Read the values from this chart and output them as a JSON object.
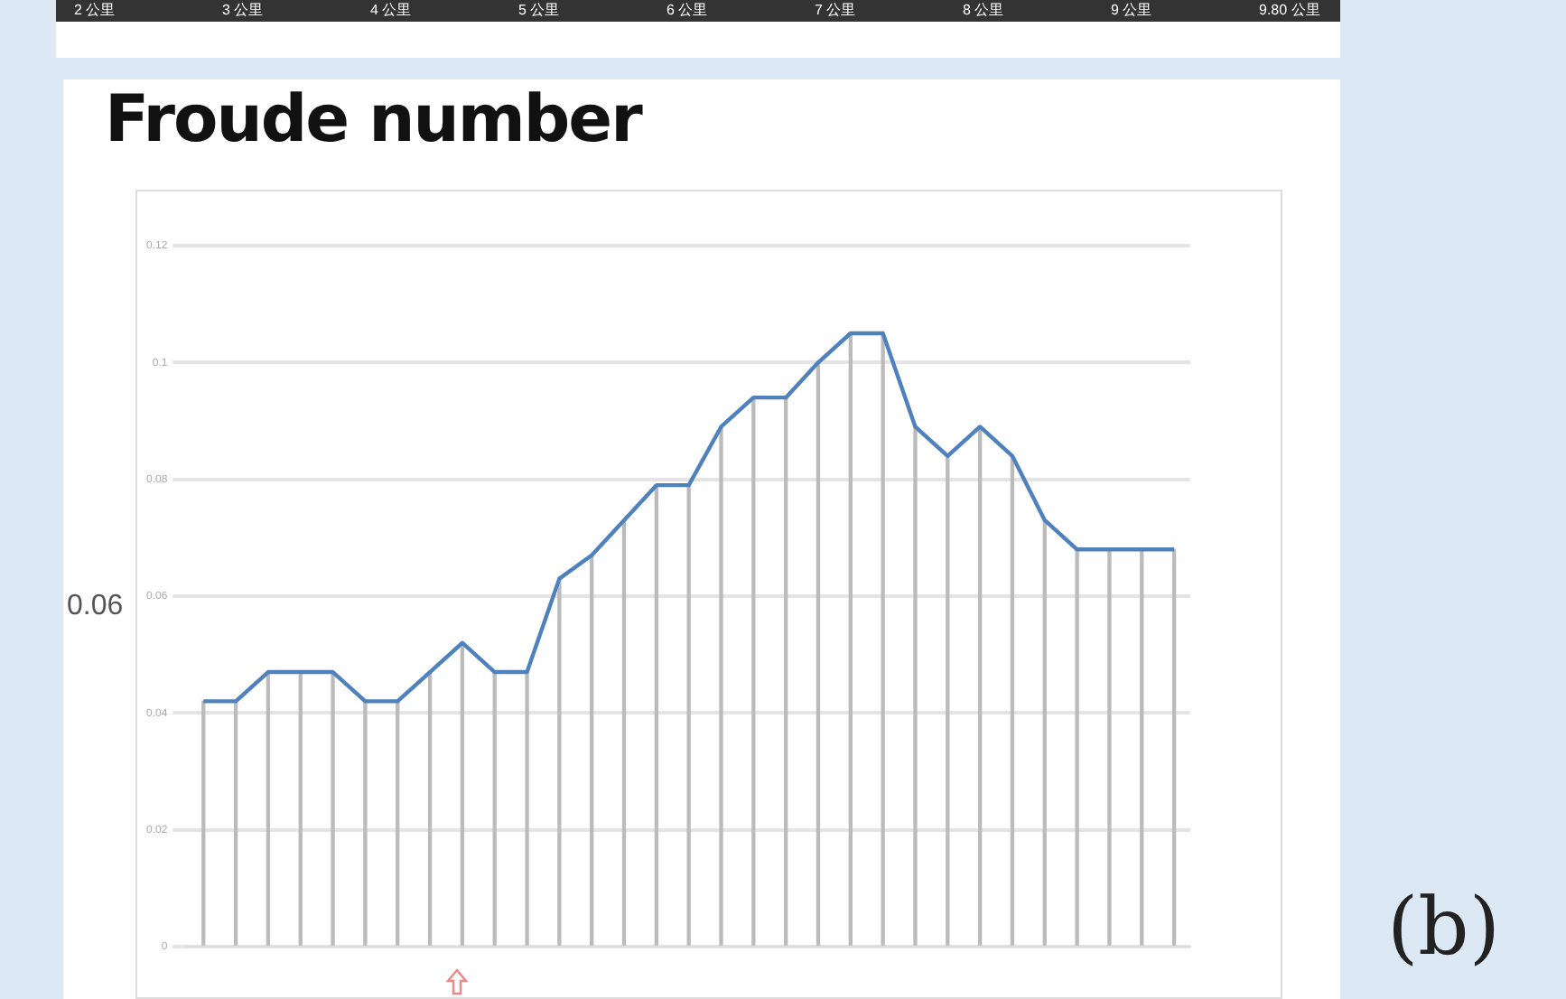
{
  "chart_data": {
    "type": "line",
    "title": "Froude number",
    "categories": [
      null,
      null,
      null,
      null,
      null,
      null,
      null,
      null,
      null,
      null,
      null,
      null,
      null,
      null,
      null,
      null,
      null,
      null,
      null,
      null,
      null,
      null,
      null,
      null,
      null,
      null,
      null,
      null,
      null,
      null,
      null
    ],
    "series": [
      {
        "color": "#4f81bd",
        "values": [
          0.042,
          0.042,
          0.047,
          0.047,
          0.047,
          0.042,
          0.042,
          0.047,
          0.052,
          0.047,
          0.047,
          0.063,
          0.067,
          0.073,
          0.079,
          0.079,
          0.089,
          0.094,
          0.094,
          0.1,
          0.105,
          0.105,
          0.089,
          0.084,
          0.089,
          0.084,
          0.073,
          0.068,
          0.068,
          0.068,
          0.068
        ]
      },
      {
        "type": "bar",
        "color": "#bbbbbb",
        "values": [
          0.042,
          0.042,
          0.047,
          0.047,
          0.047,
          0.042,
          0.042,
          0.047,
          0.052,
          0.047,
          0.047,
          0.063,
          0.067,
          0.073,
          0.079,
          0.079,
          0.089,
          0.094,
          0.094,
          0.1,
          0.105,
          0.105,
          0.089,
          0.084,
          0.089,
          0.084,
          0.073,
          0.068,
          0.068,
          0.068,
          0.068
        ]
      }
    ],
    "ylim": [
      0,
      0.12
    ],
    "yticks": [
      0,
      0.02,
      0.04,
      0.06,
      0.08,
      0.1,
      0.12
    ],
    "grid": "y",
    "marker": "none",
    "line_style": "solid",
    "annotations": [
      "0.06",
      "(b)",
      "2 公里",
      "3 公里",
      "4 公里",
      "5 公里",
      "6 公里",
      "7 公里",
      "8 公里",
      "9 公里",
      "9.80 公里"
    ]
  }
}
